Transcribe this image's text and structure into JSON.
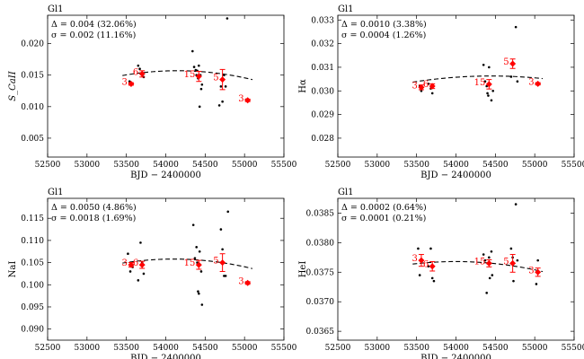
{
  "chart_data": [
    {
      "type": "scatter",
      "title": "Gl1",
      "xlabel": "BJD − 2400000",
      "ylabel": "S_CaII",
      "ylabel_style": "math-italic",
      "xlim": [
        52500,
        55500
      ],
      "ylim": [
        0.002,
        0.0245
      ],
      "xticks": [
        52500,
        53000,
        53500,
        54000,
        54500,
        55000,
        55500
      ],
      "yticks": [
        0.005,
        0.01,
        0.015,
        0.02
      ],
      "ytick_labels": [
        "0.005",
        "0.010",
        "0.015",
        "0.020"
      ],
      "annotations": [
        "Δ = 0.004 (32.06%)",
        "σ = 0.002 (11.16%)"
      ],
      "points": [
        {
          "x": 53540,
          "y": 0.014
        },
        {
          "x": 53560,
          "y": 0.0137
        },
        {
          "x": 53650,
          "y": 0.0165
        },
        {
          "x": 53670,
          "y": 0.016
        },
        {
          "x": 53700,
          "y": 0.0153
        },
        {
          "x": 53720,
          "y": 0.0147
        },
        {
          "x": 54340,
          "y": 0.0188
        },
        {
          "x": 54360,
          "y": 0.0163
        },
        {
          "x": 54380,
          "y": 0.0158
        },
        {
          "x": 54390,
          "y": 0.015
        },
        {
          "x": 54400,
          "y": 0.0157
        },
        {
          "x": 54410,
          "y": 0.0145
        },
        {
          "x": 54420,
          "y": 0.0165
        },
        {
          "x": 54430,
          "y": 0.01
        },
        {
          "x": 54440,
          "y": 0.015
        },
        {
          "x": 54450,
          "y": 0.0128
        },
        {
          "x": 54460,
          "y": 0.0135
        },
        {
          "x": 54680,
          "y": 0.0102
        },
        {
          "x": 54700,
          "y": 0.0132
        },
        {
          "x": 54720,
          "y": 0.0108
        },
        {
          "x": 54740,
          "y": 0.015
        },
        {
          "x": 54760,
          "y": 0.0132
        },
        {
          "x": 54780,
          "y": 0.024
        },
        {
          "x": 55020,
          "y": 0.0111
        },
        {
          "x": 55040,
          "y": 0.0109
        }
      ],
      "binned": [
        {
          "x": 53560,
          "y": 0.0136,
          "err": 0.0002,
          "n": "3"
        },
        {
          "x": 53700,
          "y": 0.0152,
          "err": 0.0005,
          "n": "6"
        },
        {
          "x": 54420,
          "y": 0.0148,
          "err": 0.0008,
          "n": "15"
        },
        {
          "x": 54720,
          "y": 0.0143,
          "err": 0.0016,
          "n": "5"
        },
        {
          "x": 55040,
          "y": 0.011,
          "err": 0.0002,
          "n": "3"
        }
      ],
      "fit": {
        "a": -1.56e-09,
        "x0": 54150,
        "c": 0.0157
      }
    },
    {
      "type": "scatter",
      "title": "Gl1",
      "xlabel": "BJD − 2400000",
      "ylabel": "Hα",
      "ylabel_style": "math",
      "xlim": [
        52500,
        55500
      ],
      "ylim": [
        0.0272,
        0.0332
      ],
      "xticks": [
        52500,
        53000,
        53500,
        54000,
        54500,
        55000,
        55500
      ],
      "yticks": [
        0.028,
        0.029,
        0.03,
        0.031,
        0.032,
        0.033
      ],
      "ytick_labels": [
        "0.028",
        "0.029",
        "0.030",
        "0.031",
        "0.032",
        "0.033"
      ],
      "annotations": [
        "Δ = 0.0010 (3.38%)",
        "σ = 0.0004 (1.26%)"
      ],
      "points": [
        {
          "x": 53540,
          "y": 0.0302
        },
        {
          "x": 53560,
          "y": 0.03
        },
        {
          "x": 53650,
          "y": 0.0303
        },
        {
          "x": 53680,
          "y": 0.0301
        },
        {
          "x": 53700,
          "y": 0.0299
        },
        {
          "x": 54350,
          "y": 0.0311
        },
        {
          "x": 54370,
          "y": 0.0304
        },
        {
          "x": 54390,
          "y": 0.0302
        },
        {
          "x": 54400,
          "y": 0.0299
        },
        {
          "x": 54410,
          "y": 0.0298
        },
        {
          "x": 54420,
          "y": 0.031
        },
        {
          "x": 54430,
          "y": 0.0303
        },
        {
          "x": 54450,
          "y": 0.0296
        },
        {
          "x": 54470,
          "y": 0.03
        },
        {
          "x": 54700,
          "y": 0.0306
        },
        {
          "x": 54720,
          "y": 0.0312
        },
        {
          "x": 54760,
          "y": 0.0327
        },
        {
          "x": 54780,
          "y": 0.0304
        },
        {
          "x": 55020,
          "y": 0.0303
        },
        {
          "x": 55050,
          "y": 0.0303
        }
      ],
      "binned": [
        {
          "x": 53560,
          "y": 0.03015,
          "err": 0.0001,
          "n": "3"
        },
        {
          "x": 53700,
          "y": 0.0302,
          "err": 0.0001,
          "n": "6"
        },
        {
          "x": 54420,
          "y": 0.03028,
          "err": 0.0002,
          "n": "15"
        },
        {
          "x": 54720,
          "y": 0.03115,
          "err": 0.0002,
          "n": "5"
        },
        {
          "x": 55040,
          "y": 0.0303,
          "err": 5e-05,
          "n": "3"
        }
      ],
      "fit": {
        "a": -2.6e-10,
        "x0": 54450,
        "c": 0.03063
      }
    },
    {
      "type": "scatter",
      "title": "Gl1",
      "xlabel": "BJD − 2400000",
      "ylabel": "NaI",
      "ylabel_style": "roman",
      "xlim": [
        52500,
        55500
      ],
      "ylim": [
        0.0875,
        0.1195
      ],
      "xticks": [
        52500,
        53000,
        53500,
        54000,
        54500,
        55000,
        55500
      ],
      "yticks": [
        0.09,
        0.095,
        0.1,
        0.105,
        0.11,
        0.115
      ],
      "ytick_labels": [
        "0.090",
        "0.095",
        "0.100",
        "0.105",
        "0.110",
        "0.115"
      ],
      "annotations": [
        "Δ = 0.0050 (4.86%)",
        "σ = 0.0018 (1.69%)"
      ],
      "points": [
        {
          "x": 53520,
          "y": 0.107
        },
        {
          "x": 53550,
          "y": 0.103
        },
        {
          "x": 53580,
          "y": 0.104
        },
        {
          "x": 53650,
          "y": 0.101
        },
        {
          "x": 53680,
          "y": 0.1095
        },
        {
          "x": 53700,
          "y": 0.105
        },
        {
          "x": 53720,
          "y": 0.1025
        },
        {
          "x": 54350,
          "y": 0.1135
        },
        {
          "x": 54370,
          "y": 0.106
        },
        {
          "x": 54390,
          "y": 0.1085
        },
        {
          "x": 54400,
          "y": 0.105
        },
        {
          "x": 54410,
          "y": 0.0985
        },
        {
          "x": 54420,
          "y": 0.098
        },
        {
          "x": 54430,
          "y": 0.1075
        },
        {
          "x": 54450,
          "y": 0.103
        },
        {
          "x": 54460,
          "y": 0.0955
        },
        {
          "x": 54700,
          "y": 0.1125
        },
        {
          "x": 54720,
          "y": 0.108
        },
        {
          "x": 54740,
          "y": 0.102
        },
        {
          "x": 54760,
          "y": 0.102
        },
        {
          "x": 54790,
          "y": 0.1165
        },
        {
          "x": 55020,
          "y": 0.1005
        },
        {
          "x": 55040,
          "y": 0.1003
        }
      ],
      "binned": [
        {
          "x": 53560,
          "y": 0.1045,
          "err": 0.0005,
          "n": "3"
        },
        {
          "x": 53700,
          "y": 0.1045,
          "err": 0.0008,
          "n": "6"
        },
        {
          "x": 54420,
          "y": 0.1045,
          "err": 0.001,
          "n": "15"
        },
        {
          "x": 54720,
          "y": 0.105,
          "err": 0.002,
          "n": "5"
        },
        {
          "x": 55040,
          "y": 0.1004,
          "err": 0.0003,
          "n": "3"
        }
      ],
      "fit": {
        "a": -2.15e-09,
        "x0": 54100,
        "c": 0.1058
      }
    },
    {
      "type": "scatter",
      "title": "Gl1",
      "xlabel": "BJD − 2400000",
      "ylabel": "HeI",
      "ylabel_style": "roman",
      "xlim": [
        52500,
        55500
      ],
      "ylim": [
        0.03635,
        0.03875
      ],
      "xticks": [
        52500,
        53000,
        53500,
        54000,
        54500,
        55000,
        55500
      ],
      "yticks": [
        0.0365,
        0.037,
        0.0375,
        0.038,
        0.0385
      ],
      "ytick_labels": [
        "0.0365",
        "0.0370",
        "0.0375",
        "0.0380",
        "0.0385"
      ],
      "annotations": [
        "Δ = 0.0002 (0.64%)",
        "σ = 0.0001 (0.21%)"
      ],
      "points": [
        {
          "x": 53520,
          "y": 0.0379
        },
        {
          "x": 53540,
          "y": 0.03745
        },
        {
          "x": 53570,
          "y": 0.0377
        },
        {
          "x": 53650,
          "y": 0.0376
        },
        {
          "x": 53680,
          "y": 0.0379
        },
        {
          "x": 53700,
          "y": 0.0374
        },
        {
          "x": 53720,
          "y": 0.03735
        },
        {
          "x": 54350,
          "y": 0.0378
        },
        {
          "x": 54370,
          "y": 0.0377
        },
        {
          "x": 54390,
          "y": 0.03715
        },
        {
          "x": 54400,
          "y": 0.03765
        },
        {
          "x": 54420,
          "y": 0.03775
        },
        {
          "x": 54430,
          "y": 0.0374
        },
        {
          "x": 54450,
          "y": 0.03785
        },
        {
          "x": 54460,
          "y": 0.03745
        },
        {
          "x": 54700,
          "y": 0.0379
        },
        {
          "x": 54720,
          "y": 0.03775
        },
        {
          "x": 54730,
          "y": 0.03735
        },
        {
          "x": 54760,
          "y": 0.03865
        },
        {
          "x": 54780,
          "y": 0.0377
        },
        {
          "x": 55020,
          "y": 0.0373
        },
        {
          "x": 55040,
          "y": 0.0377
        }
      ],
      "binned": [
        {
          "x": 53560,
          "y": 0.0377,
          "err": 0.0001,
          "n": "3"
        },
        {
          "x": 53700,
          "y": 0.0376,
          "err": 8e-05,
          "n": "6"
        },
        {
          "x": 54420,
          "y": 0.03765,
          "err": 6e-05,
          "n": "15"
        },
        {
          "x": 54720,
          "y": 0.03765,
          "err": 0.00015,
          "n": "5"
        },
        {
          "x": 55040,
          "y": 0.0375,
          "err": 7e-05,
          "n": "3"
        }
      ],
      "fit": {
        "a": -1.4e-10,
        "x0": 54000,
        "c": 0.03768
      }
    }
  ]
}
